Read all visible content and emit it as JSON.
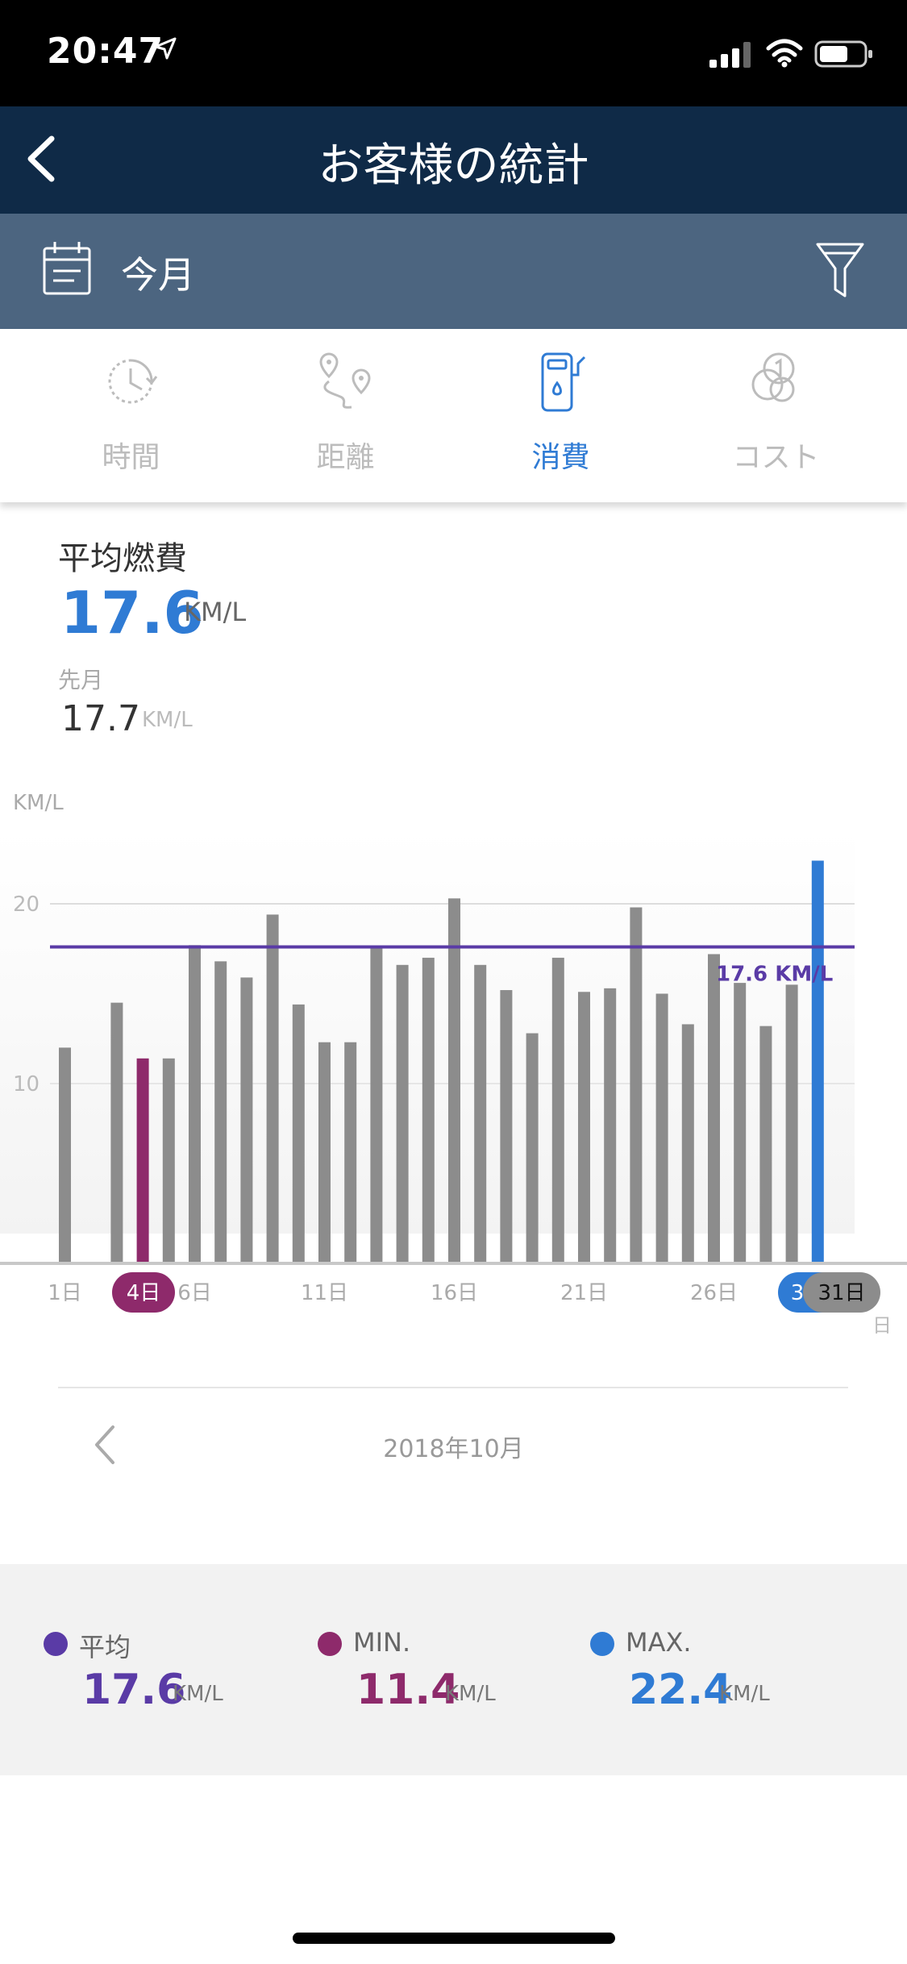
{
  "status_bar": {
    "time": "20:47"
  },
  "header": {
    "title": "お客様の統計"
  },
  "filter": {
    "period": "今月"
  },
  "tabs": [
    {
      "label": "時間",
      "icon": "clock-icon",
      "active": false
    },
    {
      "label": "距離",
      "icon": "route-icon",
      "active": false
    },
    {
      "label": "消費",
      "icon": "fuel-pump-icon",
      "active": true
    },
    {
      "label": "コスト",
      "icon": "coins-icon",
      "active": false
    }
  ],
  "summary": {
    "average_label": "平均燃費",
    "average_value": "17.6",
    "unit": "KM/L",
    "previous_label": "先月",
    "previous_value": "17.7"
  },
  "chart_data": {
    "type": "bar",
    "ylabel": "KM/L",
    "xlabel": "日",
    "y_ticks": [
      "10",
      "20"
    ],
    "ylim": [
      0,
      24
    ],
    "average_line": 17.6,
    "average_label": "17.6 KM/L",
    "x_tick_labels": [
      "1日",
      "6日",
      "11日",
      "16日",
      "21日",
      "26日"
    ],
    "min_badge": "4日",
    "max_badge_partial": "3",
    "last_badge": "31日",
    "categories": [
      "1",
      "2",
      "3",
      "4",
      "5",
      "6",
      "7",
      "8",
      "9",
      "10",
      "11",
      "12",
      "13",
      "14",
      "15",
      "16",
      "17",
      "18",
      "19",
      "20",
      "21",
      "22",
      "23",
      "24",
      "25",
      "26",
      "27",
      "28",
      "29",
      "30",
      "31"
    ],
    "values": [
      12.0,
      null,
      14.5,
      11.4,
      11.4,
      17.7,
      16.8,
      15.9,
      19.4,
      14.4,
      12.3,
      12.3,
      17.6,
      16.6,
      17.0,
      20.3,
      16.6,
      15.2,
      12.8,
      17.0,
      15.1,
      15.3,
      19.8,
      15.0,
      13.3,
      17.2,
      15.6,
      13.2,
      15.5,
      22.4,
      null
    ],
    "min_index": 3,
    "max_index": 29,
    "colors": {
      "bar": "#8c8c8c",
      "min": "#8e2a6b",
      "max": "#2f7bd4",
      "average": "#5a3ba6"
    }
  },
  "month_nav": {
    "label": "2018年10月"
  },
  "legend": [
    {
      "name": "平均",
      "value": "17.6",
      "unit": "KM/L",
      "color": "#5a3ba6"
    },
    {
      "name": "MIN.",
      "value": "11.4",
      "unit": "KM/L",
      "color": "#8e2a6b"
    },
    {
      "name": "MAX.",
      "value": "22.4",
      "unit": "KM/L",
      "color": "#2f7bd4"
    }
  ]
}
